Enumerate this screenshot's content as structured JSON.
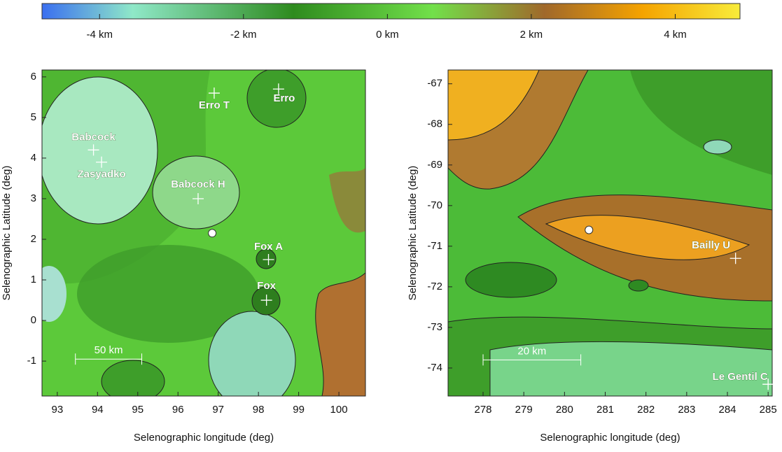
{
  "chart_data": [
    {
      "type": "colorbar",
      "xlim": [
        -4.8,
        4.9
      ],
      "xticks": [
        {
          "value": -4,
          "label": "-4 km"
        },
        {
          "value": -2,
          "label": "-2 km"
        },
        {
          "value": 0,
          "label": "0 km"
        },
        {
          "value": 2,
          "label": "2 km"
        },
        {
          "value": 4,
          "label": "4 km"
        }
      ]
    },
    {
      "type": "map",
      "x_label": "Selenographic longitude (deg)",
      "y_label": "Selenographic Latitude (deg)",
      "xlim": [
        92.62,
        100.66
      ],
      "ylim": [
        -1.86,
        6.17
      ],
      "xticks": [
        93,
        94,
        95,
        96,
        97,
        98,
        99,
        100
      ],
      "yticks": [
        -1,
        0,
        1,
        2,
        3,
        4,
        5,
        6
      ],
      "craters": [
        {
          "name": "Erro T",
          "lon": 96.9,
          "lat": 5.6
        },
        {
          "name": "Erro",
          "lon": 98.5,
          "lat": 5.7
        },
        {
          "name": "Babcock",
          "lon": 93.9,
          "lat": 4.2
        },
        {
          "name": "Zasyadko",
          "lon": 94.1,
          "lat": 3.9
        },
        {
          "name": "Babcock H",
          "lon": 96.5,
          "lat": 3.0
        },
        {
          "name": "Fox A",
          "lon": 98.25,
          "lat": 1.5
        },
        {
          "name": "Fox",
          "lon": 98.2,
          "lat": 0.5
        }
      ],
      "site": {
        "lon": 96.85,
        "lat": 2.15
      },
      "scale_bar": {
        "label": "50 km",
        "lon": [
          93.45,
          95.1
        ],
        "lat": -0.95
      }
    },
    {
      "type": "map",
      "x_label": "Selenographic longitude (deg)",
      "y_label": "Selenographic Latitude (deg)",
      "xlim": [
        277.14,
        285.1
      ],
      "ylim": [
        -74.69,
        -66.66
      ],
      "xticks": [
        278,
        279,
        280,
        281,
        282,
        283,
        284,
        285
      ],
      "yticks": [
        -74,
        -73,
        -72,
        -71,
        -70,
        -69,
        -68,
        -67
      ],
      "craters": [
        {
          "name": "Bailly U",
          "lon": 284.2,
          "lat": -71.3
        },
        {
          "name": "Le Gentil C",
          "lon": 285.0,
          "lat": -74.4
        }
      ],
      "site": {
        "lon": 280.6,
        "lat": -70.6
      },
      "scale_bar": {
        "label": "20 km",
        "lon": [
          278.0,
          280.4
        ],
        "lat": -73.8
      }
    }
  ]
}
